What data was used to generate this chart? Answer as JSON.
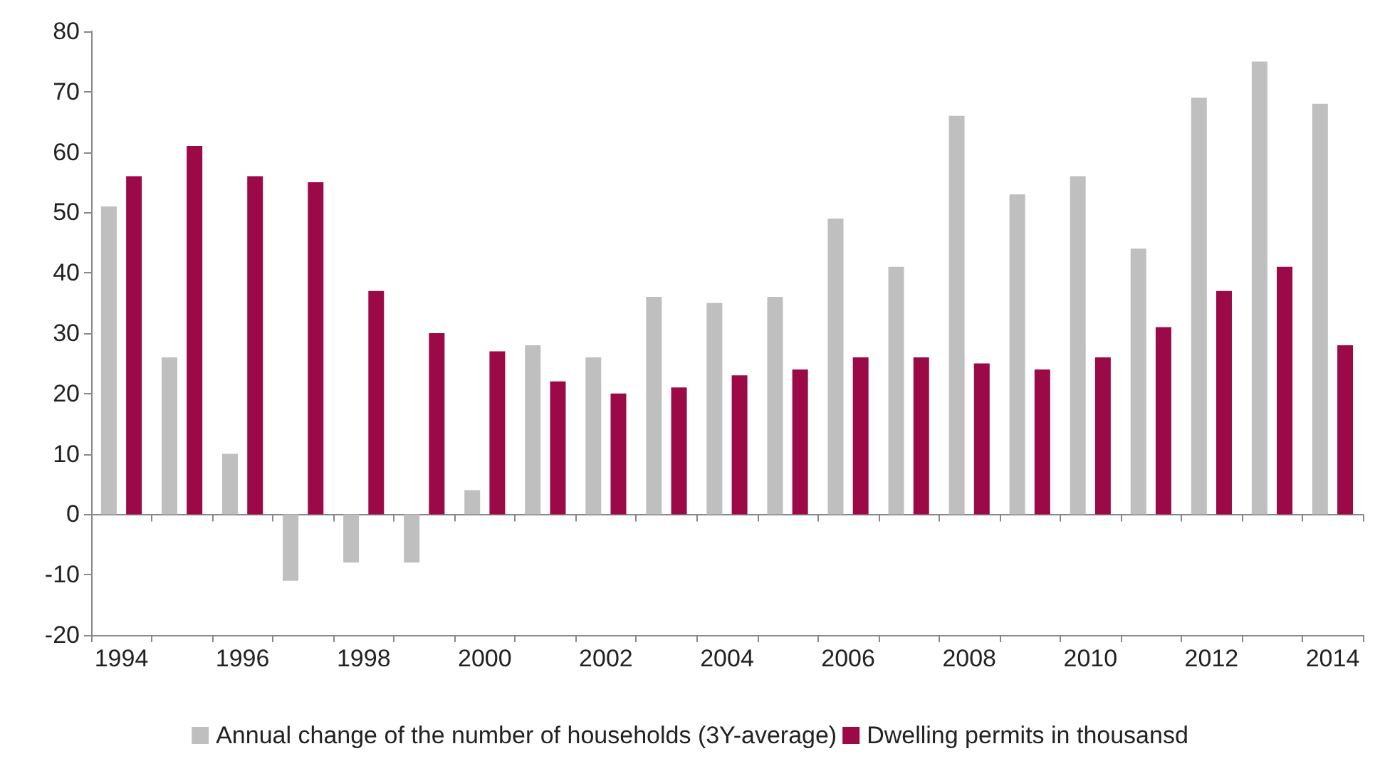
{
  "chart_data": {
    "type": "bar",
    "categories": [
      "1994",
      null,
      "1996",
      null,
      "1998",
      null,
      "2000",
      null,
      "2002",
      null,
      "2004",
      null,
      "2006",
      null,
      "2008",
      null,
      "2010",
      null,
      "2012",
      null,
      "2014"
    ],
    "series": [
      {
        "name": "Annual change of the number of households (3Y-average)",
        "color": "#bfbfbf",
        "values": [
          51,
          26,
          10,
          -11,
          -8,
          -8,
          4,
          28,
          26,
          36,
          35,
          36,
          49,
          41,
          66,
          53,
          56,
          44,
          69,
          75,
          68
        ]
      },
      {
        "name": "Dwelling permits in thousansd",
        "color": "#9b0a46",
        "values": [
          56,
          61,
          56,
          55,
          37,
          30,
          27,
          22,
          20,
          21,
          23,
          24,
          26,
          26,
          25,
          24,
          26,
          31,
          37,
          41,
          28
        ]
      }
    ],
    "ylim": [
      -20,
      80
    ],
    "yticks": [
      -20,
      -10,
      0,
      10,
      20,
      30,
      40,
      50,
      60,
      70,
      80
    ],
    "legend": "bottom"
  }
}
